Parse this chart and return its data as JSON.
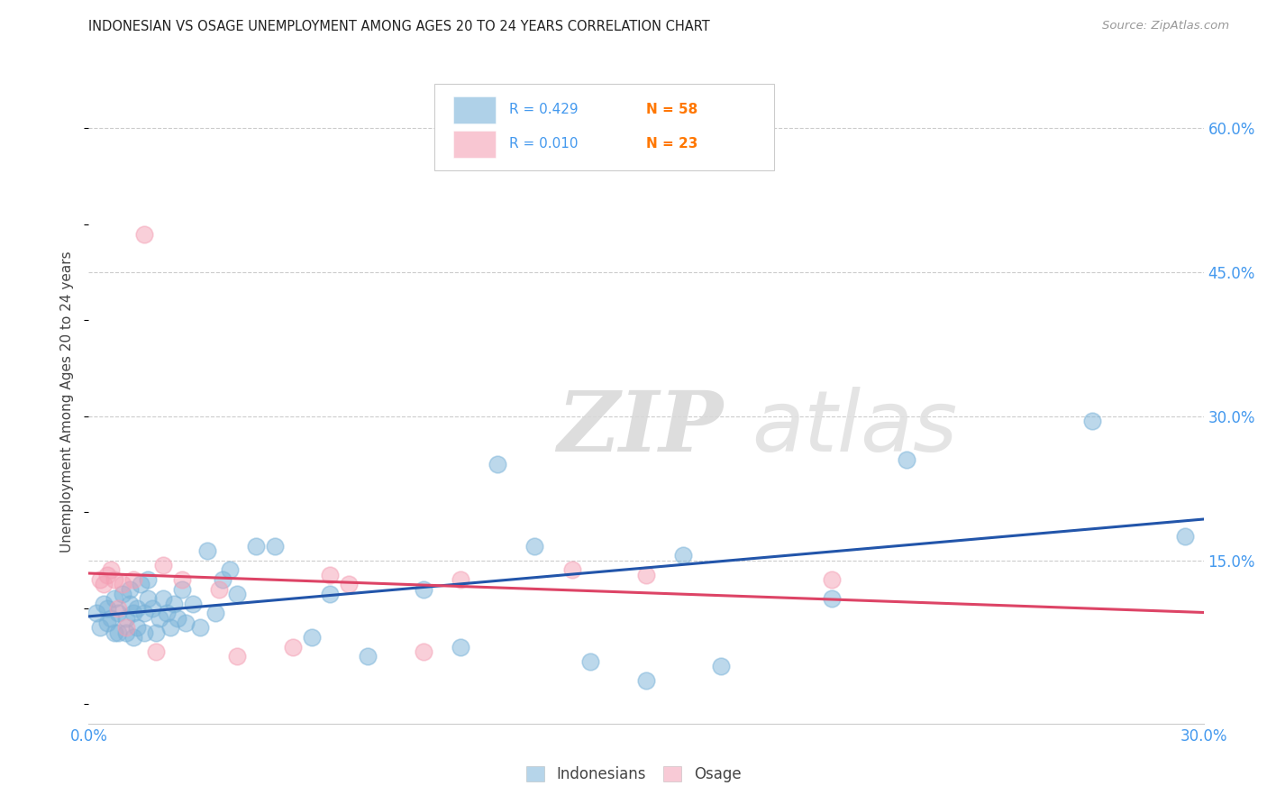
{
  "title": "INDONESIAN VS OSAGE UNEMPLOYMENT AMONG AGES 20 TO 24 YEARS CORRELATION CHART",
  "source": "Source: ZipAtlas.com",
  "ylabel": "Unemployment Among Ages 20 to 24 years",
  "xlim": [
    0.0,
    0.3
  ],
  "ylim": [
    -0.02,
    0.65
  ],
  "xticks": [
    0.0,
    0.05,
    0.1,
    0.15,
    0.2,
    0.25,
    0.3
  ],
  "xtick_labels": [
    "0.0%",
    "",
    "",
    "",
    "",
    "",
    "30.0%"
  ],
  "ytick_vals": [
    0.15,
    0.3,
    0.45,
    0.6
  ],
  "ytick_labels": [
    "15.0%",
    "30.0%",
    "45.0%",
    "60.0%"
  ],
  "indonesian_R": 0.429,
  "indonesian_N": 58,
  "osage_R": 0.01,
  "osage_N": 23,
  "indonesian_color": "#7ab3d9",
  "osage_color": "#f4a0b5",
  "indonesian_line_color": "#2255aa",
  "osage_line_color": "#dd4466",
  "watermark_zip": "ZIP",
  "watermark_atlas": "atlas",
  "indonesian_x": [
    0.002,
    0.003,
    0.004,
    0.005,
    0.005,
    0.006,
    0.007,
    0.007,
    0.008,
    0.008,
    0.009,
    0.01,
    0.01,
    0.011,
    0.011,
    0.012,
    0.012,
    0.013,
    0.013,
    0.014,
    0.015,
    0.015,
    0.016,
    0.016,
    0.017,
    0.018,
    0.019,
    0.02,
    0.021,
    0.022,
    0.023,
    0.024,
    0.025,
    0.026,
    0.028,
    0.03,
    0.032,
    0.034,
    0.036,
    0.038,
    0.04,
    0.045,
    0.05,
    0.06,
    0.065,
    0.075,
    0.09,
    0.1,
    0.11,
    0.12,
    0.135,
    0.15,
    0.16,
    0.17,
    0.2,
    0.22,
    0.27,
    0.295
  ],
  "indonesian_y": [
    0.095,
    0.08,
    0.105,
    0.1,
    0.085,
    0.09,
    0.075,
    0.11,
    0.095,
    0.075,
    0.115,
    0.09,
    0.075,
    0.105,
    0.12,
    0.095,
    0.07,
    0.1,
    0.08,
    0.125,
    0.095,
    0.075,
    0.11,
    0.13,
    0.1,
    0.075,
    0.09,
    0.11,
    0.095,
    0.08,
    0.105,
    0.09,
    0.12,
    0.085,
    0.105,
    0.08,
    0.16,
    0.095,
    0.13,
    0.14,
    0.115,
    0.165,
    0.165,
    0.07,
    0.115,
    0.05,
    0.12,
    0.06,
    0.25,
    0.165,
    0.045,
    0.025,
    0.155,
    0.04,
    0.11,
    0.255,
    0.295,
    0.175
  ],
  "osage_x": [
    0.003,
    0.004,
    0.005,
    0.006,
    0.007,
    0.008,
    0.009,
    0.01,
    0.012,
    0.015,
    0.018,
    0.02,
    0.025,
    0.035,
    0.04,
    0.055,
    0.065,
    0.07,
    0.09,
    0.1,
    0.13,
    0.15,
    0.2
  ],
  "osage_y": [
    0.13,
    0.125,
    0.135,
    0.14,
    0.13,
    0.1,
    0.125,
    0.08,
    0.13,
    0.49,
    0.055,
    0.145,
    0.13,
    0.12,
    0.05,
    0.06,
    0.135,
    0.125,
    0.055,
    0.13,
    0.14,
    0.135,
    0.13
  ]
}
